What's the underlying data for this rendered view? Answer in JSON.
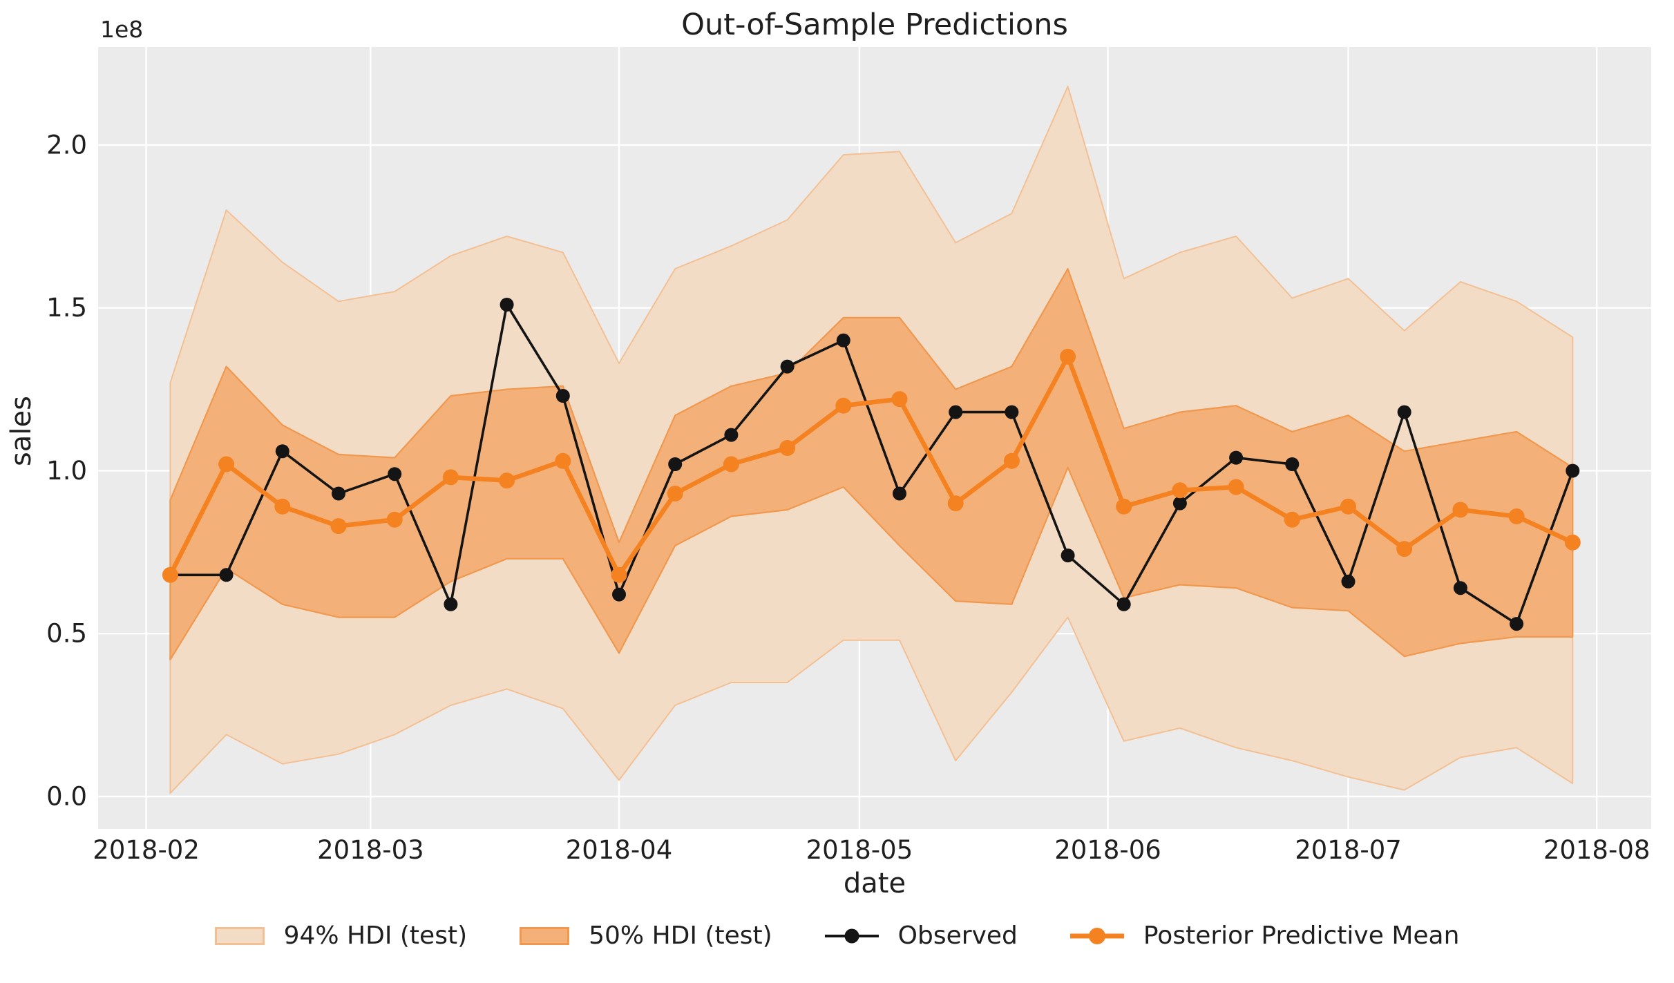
{
  "colors": {
    "figure_bg": "#ffffff",
    "plot_bg": "#ebebeb",
    "grid": "#ffffff",
    "text": "#1f1f1f",
    "observed": "#141414",
    "mean": "#f58220",
    "hdi94_fill": "#f2dcc6",
    "hdi94_edge": "#f3c094",
    "hdi50_fill": "#f3b078",
    "hdi50_edge": "#f0984e"
  },
  "chart_data": {
    "type": "line",
    "title": "Out-of-Sample Predictions",
    "xlabel": "date",
    "ylabel": "sales",
    "axis_offset_text": "1e8",
    "grid": true,
    "legend_position": "bottom",
    "x_tick_labels": [
      "2018-02",
      "2018-03",
      "2018-04",
      "2018-05",
      "2018-06",
      "2018-07",
      "2018-08"
    ],
    "x_tick_days": [
      0,
      28,
      59,
      89,
      120,
      150,
      181
    ],
    "y_ticks": [
      0.0,
      0.5,
      1.0,
      1.5,
      2.0
    ],
    "y_units": "1e8",
    "xlim_days": [
      -6.0,
      187.8
    ],
    "ylim": [
      -0.0997,
      2.301
    ],
    "dates": [
      "2018-02-04",
      "2018-02-11",
      "2018-02-18",
      "2018-02-25",
      "2018-03-04",
      "2018-03-11",
      "2018-03-18",
      "2018-03-25",
      "2018-04-01",
      "2018-04-08",
      "2018-04-15",
      "2018-04-22",
      "2018-04-29",
      "2018-05-06",
      "2018-05-13",
      "2018-05-20",
      "2018-05-27",
      "2018-06-03",
      "2018-06-10",
      "2018-06-17",
      "2018-06-24",
      "2018-07-01",
      "2018-07-08",
      "2018-07-15",
      "2018-07-22",
      "2018-07-29"
    ],
    "x_days": [
      3,
      10,
      17,
      24,
      31,
      38,
      45,
      52,
      59,
      66,
      73,
      80,
      87,
      94,
      101,
      108,
      115,
      122,
      129,
      136,
      143,
      150,
      157,
      164,
      171,
      178
    ],
    "series": [
      {
        "name": "94% HDI (test)",
        "kind": "band",
        "upper": [
          1.27,
          1.8,
          1.64,
          1.52,
          1.55,
          1.66,
          1.72,
          1.67,
          1.33,
          1.62,
          1.69,
          1.77,
          1.97,
          1.98,
          1.7,
          1.79,
          2.18,
          1.59,
          1.67,
          1.72,
          1.53,
          1.59,
          1.43,
          1.58,
          1.52,
          1.41
        ],
        "lower": [
          0.01,
          0.19,
          0.1,
          0.13,
          0.19,
          0.28,
          0.33,
          0.27,
          0.05,
          0.28,
          0.35,
          0.35,
          0.48,
          0.48,
          0.11,
          0.32,
          0.55,
          0.17,
          0.21,
          0.15,
          0.11,
          0.06,
          0.02,
          0.12,
          0.15,
          0.04
        ]
      },
      {
        "name": "50% HDI (test)",
        "kind": "band",
        "upper": [
          0.91,
          1.32,
          1.14,
          1.05,
          1.04,
          1.23,
          1.25,
          1.26,
          0.78,
          1.17,
          1.26,
          1.3,
          1.47,
          1.47,
          1.25,
          1.32,
          1.62,
          1.13,
          1.18,
          1.2,
          1.12,
          1.17,
          1.06,
          1.09,
          1.12,
          1.01
        ],
        "lower": [
          0.42,
          0.7,
          0.59,
          0.55,
          0.55,
          0.66,
          0.73,
          0.73,
          0.44,
          0.77,
          0.86,
          0.88,
          0.95,
          0.77,
          0.6,
          0.59,
          1.01,
          0.61,
          0.65,
          0.64,
          0.58,
          0.57,
          0.43,
          0.47,
          0.49,
          0.49
        ]
      },
      {
        "name": "Observed",
        "kind": "line",
        "values": [
          0.68,
          0.68,
          1.06,
          0.93,
          0.99,
          0.59,
          1.51,
          1.23,
          0.62,
          1.02,
          1.11,
          1.32,
          1.4,
          0.93,
          1.18,
          1.18,
          0.74,
          0.59,
          0.9,
          1.04,
          1.02,
          0.66,
          1.18,
          0.64,
          0.53,
          1.0
        ]
      },
      {
        "name": "Posterior Predictive Mean",
        "kind": "line",
        "values": [
          0.68,
          1.02,
          0.89,
          0.83,
          0.85,
          0.98,
          0.97,
          1.03,
          0.68,
          0.93,
          1.02,
          1.07,
          1.2,
          1.22,
          0.9,
          1.03,
          1.35,
          0.89,
          0.94,
          0.95,
          0.85,
          0.89,
          0.76,
          0.88,
          0.86,
          0.78
        ]
      }
    ]
  }
}
